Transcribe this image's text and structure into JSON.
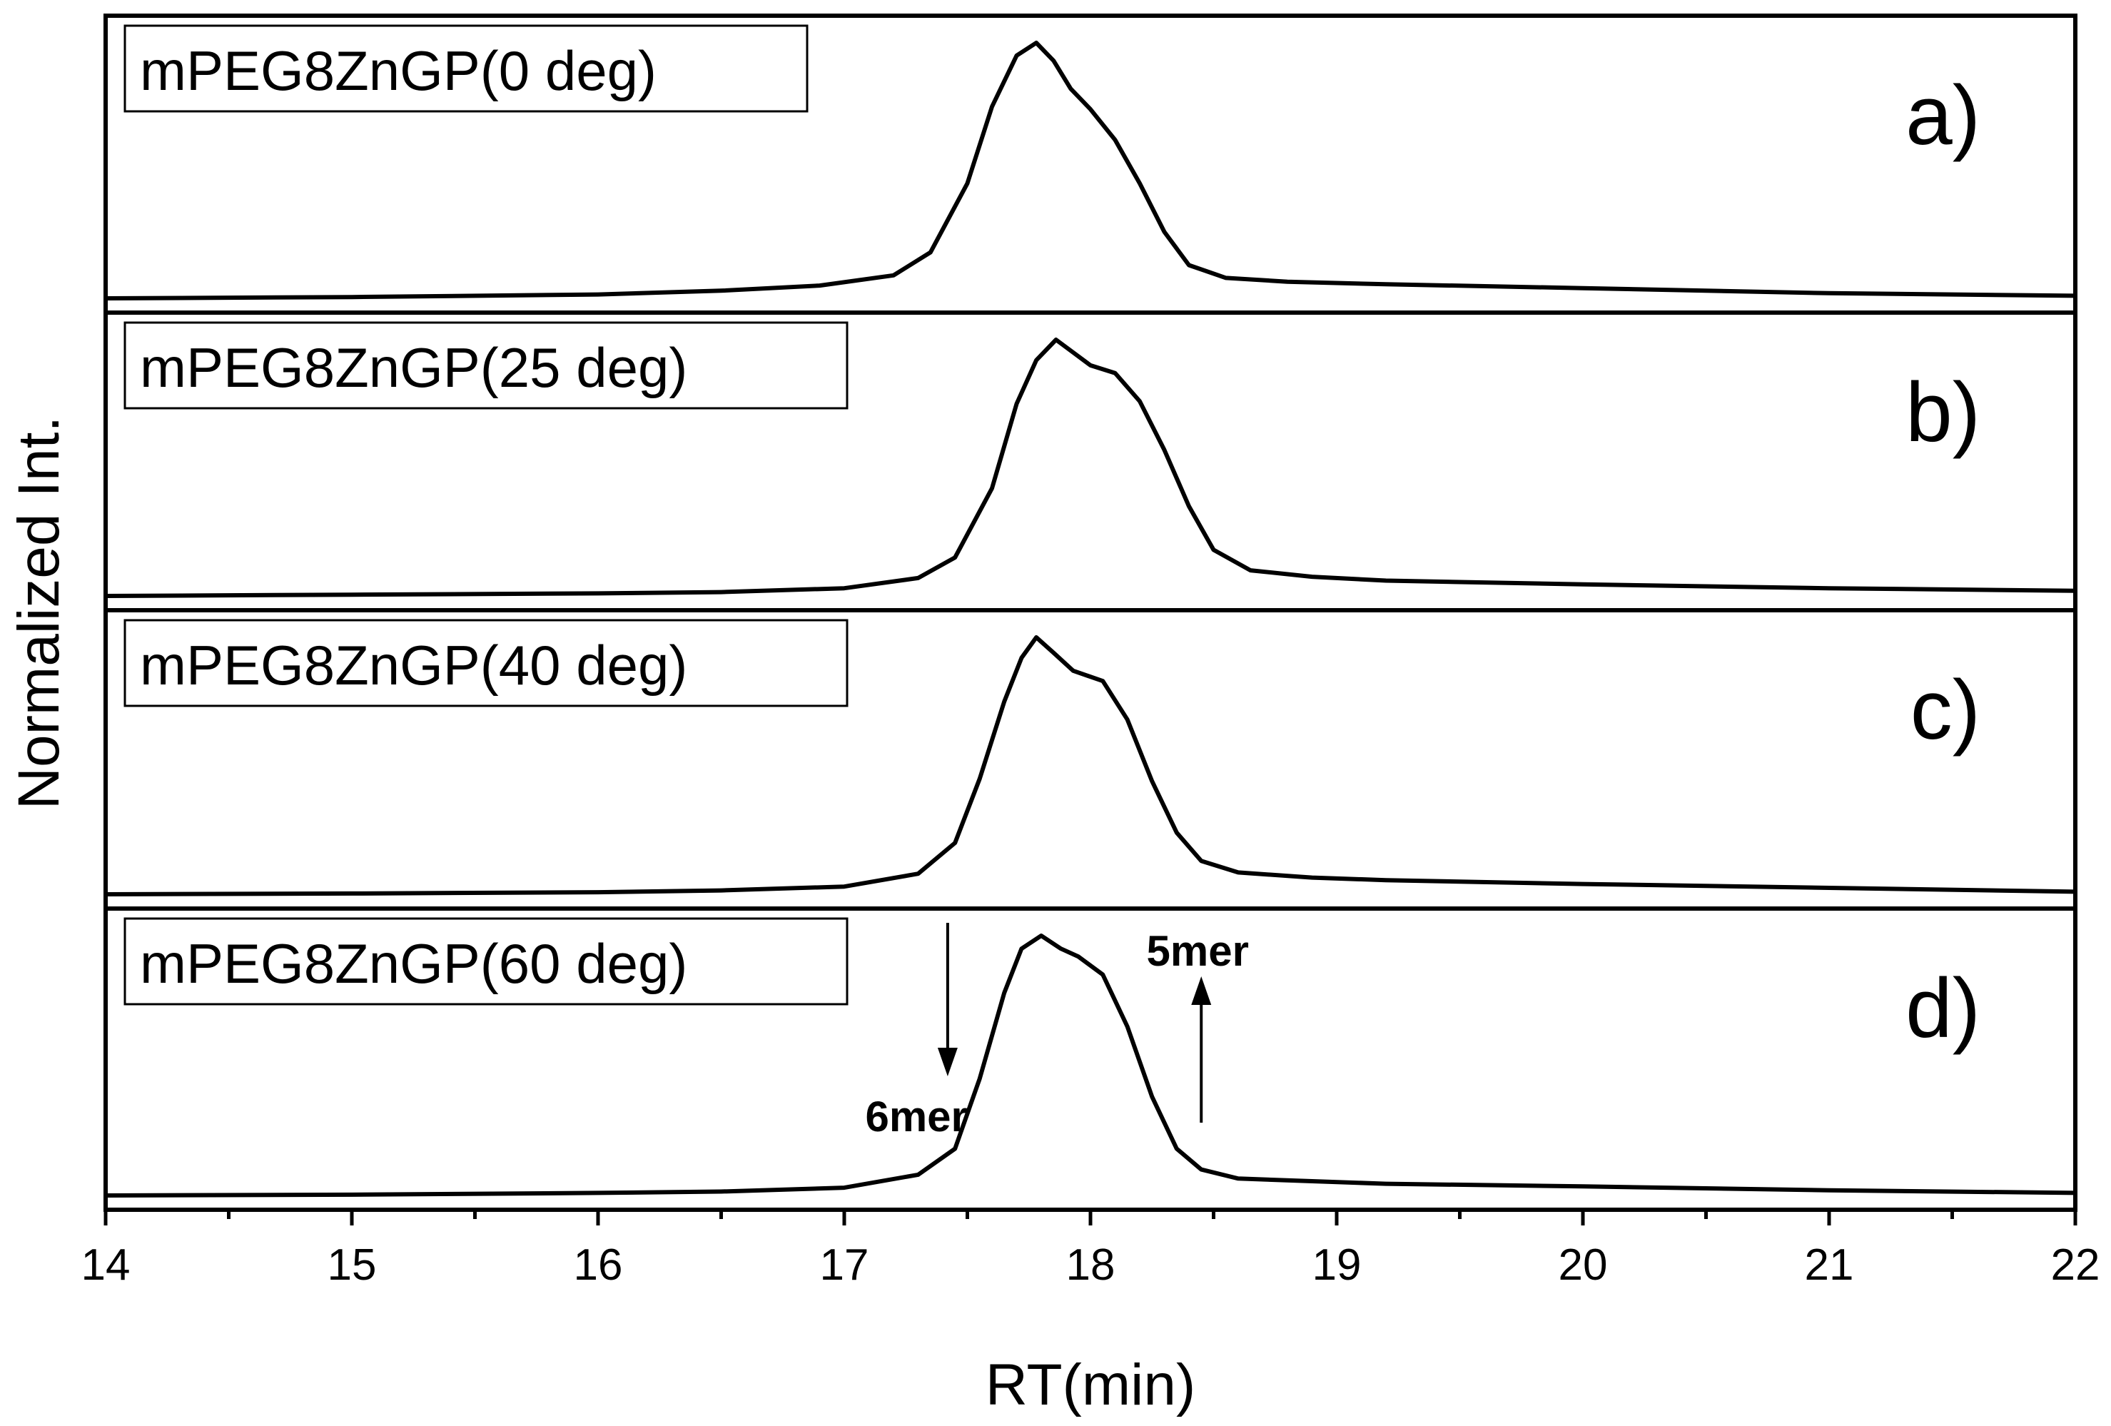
{
  "chart_data": {
    "type": "line",
    "xlabel": "RT(min)",
    "ylabel": "Normalized Int.",
    "xlim": [
      14,
      22
    ],
    "x_ticks": [
      14,
      15,
      16,
      17,
      18,
      19,
      20,
      21,
      22
    ],
    "x_tick_labels": [
      "14",
      "15",
      "16",
      "17",
      "18",
      "19",
      "20",
      "21",
      "22"
    ],
    "x_minor_step": 0.5,
    "ylim": [
      0,
      1
    ],
    "grid": false,
    "panels": [
      {
        "id": "a",
        "panel_label": "a)",
        "legend": "mPEG8ZnGP(0 deg)",
        "series": {
          "name": "mPEG8ZnGP(0 deg)",
          "x": [
            14.0,
            15.0,
            16.0,
            16.5,
            16.9,
            17.2,
            17.35,
            17.5,
            17.6,
            17.7,
            17.78,
            17.85,
            17.92,
            18.0,
            18.1,
            18.2,
            18.3,
            18.4,
            18.55,
            18.8,
            19.2,
            20.0,
            21.0,
            22.0
          ],
          "y": [
            0.0,
            0.005,
            0.015,
            0.03,
            0.05,
            0.09,
            0.18,
            0.45,
            0.75,
            0.95,
            1.0,
            0.93,
            0.82,
            0.74,
            0.62,
            0.45,
            0.26,
            0.13,
            0.08,
            0.065,
            0.055,
            0.04,
            0.02,
            0.01
          ]
        }
      },
      {
        "id": "b",
        "panel_label": "b)",
        "legend": "mPEG8ZnGP(25 deg)",
        "series": {
          "name": "mPEG8ZnGP(25 deg)",
          "x": [
            14.0,
            15.0,
            16.0,
            16.5,
            17.0,
            17.3,
            17.45,
            17.6,
            17.7,
            17.78,
            17.86,
            17.93,
            18.0,
            18.1,
            18.2,
            18.3,
            18.4,
            18.5,
            18.65,
            18.9,
            19.2,
            20.0,
            21.0,
            22.0
          ],
          "y": [
            0.0,
            0.005,
            0.01,
            0.015,
            0.03,
            0.07,
            0.15,
            0.42,
            0.75,
            0.92,
            1.0,
            0.95,
            0.9,
            0.87,
            0.76,
            0.57,
            0.35,
            0.18,
            0.1,
            0.075,
            0.06,
            0.045,
            0.03,
            0.02
          ]
        }
      },
      {
        "id": "c",
        "panel_label": "c)",
        "legend": "mPEG8ZnGP(40 deg)",
        "series": {
          "name": "mPEG8ZnGP(40 deg)",
          "x": [
            14.0,
            15.0,
            16.0,
            16.5,
            17.0,
            17.3,
            17.45,
            17.55,
            17.65,
            17.72,
            17.78,
            17.85,
            17.93,
            18.05,
            18.15,
            18.25,
            18.35,
            18.45,
            18.6,
            18.9,
            19.2,
            20.0,
            21.0,
            22.0
          ],
          "y": [
            0.0,
            0.003,
            0.008,
            0.015,
            0.03,
            0.08,
            0.2,
            0.45,
            0.75,
            0.92,
            1.0,
            0.94,
            0.87,
            0.83,
            0.68,
            0.44,
            0.24,
            0.13,
            0.085,
            0.065,
            0.055,
            0.04,
            0.025,
            0.01
          ]
        }
      },
      {
        "id": "d",
        "panel_label": "d)",
        "legend": "mPEG8ZnGP(60 deg)",
        "series": {
          "name": "mPEG8ZnGP(60 deg)",
          "x": [
            14.0,
            15.0,
            16.0,
            16.5,
            17.0,
            17.3,
            17.45,
            17.55,
            17.65,
            17.72,
            17.8,
            17.88,
            17.95,
            18.05,
            18.15,
            18.25,
            18.35,
            18.45,
            18.6,
            18.9,
            19.2,
            20.0,
            21.0,
            22.0
          ],
          "y": [
            0.0,
            0.003,
            0.01,
            0.015,
            0.03,
            0.08,
            0.18,
            0.45,
            0.78,
            0.95,
            1.0,
            0.95,
            0.92,
            0.85,
            0.65,
            0.38,
            0.18,
            0.1,
            0.065,
            0.055,
            0.045,
            0.035,
            0.02,
            0.01
          ]
        },
        "annotations": [
          {
            "text": "6mer",
            "x": 17.42,
            "direction": "down"
          },
          {
            "text": "5mer",
            "x": 18.45,
            "direction": "up"
          }
        ]
      }
    ]
  }
}
